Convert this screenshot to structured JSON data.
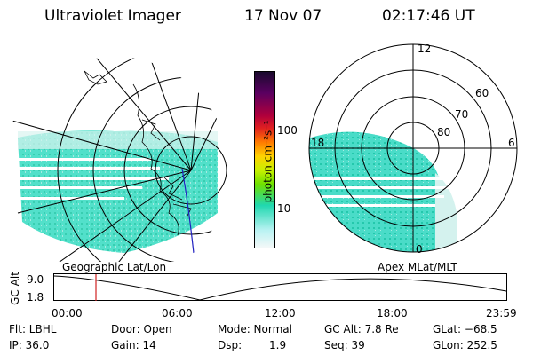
{
  "header": {
    "instrument": "Ultraviolet Imager",
    "date": "17 Nov 07",
    "time": "02:17:46 UT"
  },
  "colorbar": {
    "title": "photon cm⁻²s⁻¹",
    "ticks": [
      "100",
      "10"
    ],
    "stops": [
      "#1a0a2e",
      "#5a0060",
      "#b0003c",
      "#e02020",
      "#ff7a00",
      "#ffd200",
      "#c8f000",
      "#6ee000",
      "#20d8b0",
      "#b8f2f2",
      "#f4f8f8"
    ]
  },
  "left_panel": {
    "caption": "Geographic Lat/Lon"
  },
  "right_panel": {
    "caption": "Apex MLat/MLT",
    "mlt_labels": [
      "12",
      "18",
      "6",
      "0"
    ],
    "mlat_labels": [
      "60",
      "70",
      "80"
    ]
  },
  "altitude_plot": {
    "ylabel": "GC Alt",
    "ymax": "9.0",
    "ymin": "1.8",
    "xticks": [
      "00:00",
      "06:00",
      "12:00",
      "18:00",
      "23:59"
    ],
    "marker_time": "02:17"
  },
  "footer": {
    "filter": "Flt: LBHL",
    "door": "Door: Open",
    "mode": "Mode: Normal",
    "gc_alt": "GC Alt: 7.8 Re",
    "glat": "GLat: −68.5",
    "ip": "IP: 36.0",
    "gain": "Gain: 14",
    "dsp_label": "Dsp:",
    "dsp_value": "1.9",
    "seq": "Seq: 39",
    "glon": "GLon: 252.5"
  },
  "colors": {
    "aurora": "#2ad8c0",
    "aurora_light": "#bfeee8",
    "marker": "#d02020",
    "track": "#2020c0"
  }
}
